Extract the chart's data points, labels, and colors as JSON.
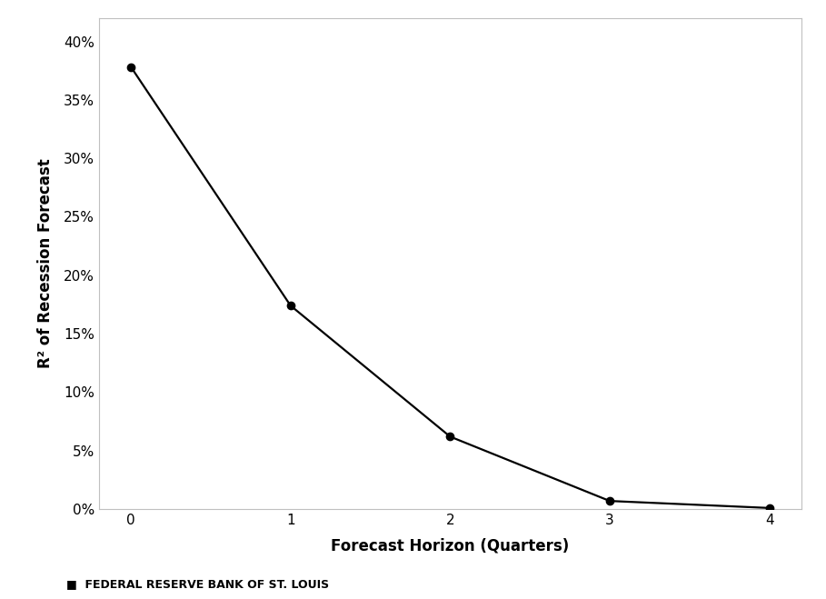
{
  "x": [
    0,
    1,
    2,
    3,
    4
  ],
  "y": [
    0.378,
    0.174,
    0.062,
    0.007,
    0.001
  ],
  "line_color": "#000000",
  "marker": "o",
  "marker_size": 6,
  "marker_facecolor": "#000000",
  "marker_edgecolor": "#000000",
  "line_width": 1.6,
  "xlabel": "Forecast Horizon (Quarters)",
  "ylabel": "R² of Recession Forecast",
  "xlim": [
    -0.2,
    4.2
  ],
  "ylim": [
    0.0,
    0.42
  ],
  "yticks": [
    0.0,
    0.05,
    0.1,
    0.15,
    0.2,
    0.25,
    0.3,
    0.35,
    0.4
  ],
  "xticks": [
    0,
    1,
    2,
    3,
    4
  ],
  "xlabel_fontsize": 12,
  "ylabel_fontsize": 12,
  "tick_fontsize": 11,
  "footer_text": "■  FEDERAL RESERVE BANK OF ST. LOUIS",
  "footer_fontsize": 9,
  "background_color": "#ffffff",
  "spine_color": "#c0c0c0"
}
